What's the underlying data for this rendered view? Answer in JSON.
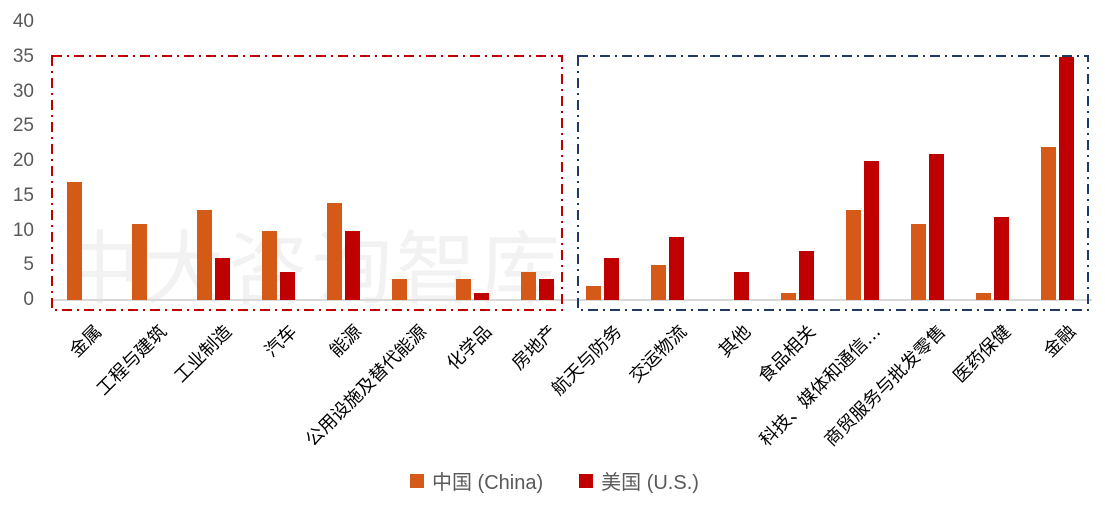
{
  "chart_data": {
    "type": "bar",
    "title": "",
    "xlabel": "",
    "ylabel": "",
    "ylim": [
      0,
      40
    ],
    "yticks": [
      0,
      5,
      10,
      15,
      20,
      25,
      30,
      35,
      40
    ],
    "grid": false,
    "legend_position": "bottom",
    "categories": [
      "金属",
      "工程与建筑",
      "工业制造",
      "汽车",
      "能源",
      "公用设施及替代能源",
      "化学品",
      "房地产",
      "航天与防务",
      "交运物流",
      "其他",
      "食品相关",
      "科技、媒体和通信…",
      "商贸服务与批发零售",
      "医药保健",
      "金融"
    ],
    "series": [
      {
        "name": "中国 (China)",
        "color": "#d55a17",
        "values": [
          17,
          11,
          13,
          10,
          14,
          3,
          3,
          4,
          2,
          5,
          0,
          1,
          13,
          11,
          1,
          22
        ]
      },
      {
        "name": "美国 (U.S.)",
        "color": "#c00000",
        "values": [
          0,
          0,
          6,
          4,
          10,
          0,
          1,
          3,
          6,
          9,
          4,
          7,
          20,
          21,
          12,
          35
        ]
      }
    ],
    "annotations": [
      {
        "type": "dash-dot box",
        "color": "#c00000",
        "covers_categories": "金属 – 房地产"
      },
      {
        "type": "dash-dot box",
        "color": "#1f3864",
        "covers_categories": "航天与防务 – 金融"
      }
    ]
  },
  "legend": {
    "china_label": "中国 (China)",
    "us_label": "美国 (U.S.)"
  },
  "watermark": "中大咨询智库"
}
